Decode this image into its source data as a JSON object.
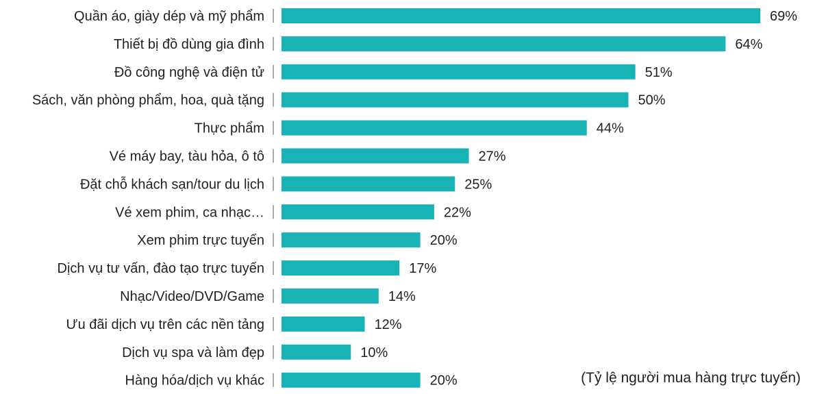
{
  "chart_data": {
    "type": "bar",
    "orientation": "horizontal",
    "categories": [
      "Quần áo, giày dép và mỹ phẩm",
      "Thiết bị đồ dùng gia đình",
      "Đồ công nghệ và điện tử",
      "Sách, văn phòng phẩm, hoa, quà tặng",
      "Thực phẩm",
      "Vé máy bay, tàu hỏa, ô tô",
      "Đặt chỗ khách sạn/tour du lịch",
      "Vé xem phim, ca nhạc…",
      "Xem phim trực tuyến",
      "Dịch vụ tư vấn, đào tạo trực tuyến",
      "Nhạc/Video/DVD/Game",
      "Ưu đãi dịch vụ trên các nền tảng",
      "Dịch vụ spa và làm đẹp",
      "Hàng hóa/dịch vụ khác"
    ],
    "values": [
      69,
      64,
      51,
      50,
      44,
      27,
      25,
      22,
      20,
      17,
      14,
      12,
      10,
      20
    ],
    "value_labels": [
      "69%",
      "64%",
      "51%",
      "50%",
      "44%",
      "27%",
      "25%",
      "22%",
      "20%",
      "17%",
      "14%",
      "12%",
      "10%",
      "20%"
    ],
    "bar_color": "#17b3b5",
    "xlim": [
      0,
      69
    ],
    "grid": false,
    "note": "(Tỷ lệ người mua hàng trực tuyến)"
  }
}
